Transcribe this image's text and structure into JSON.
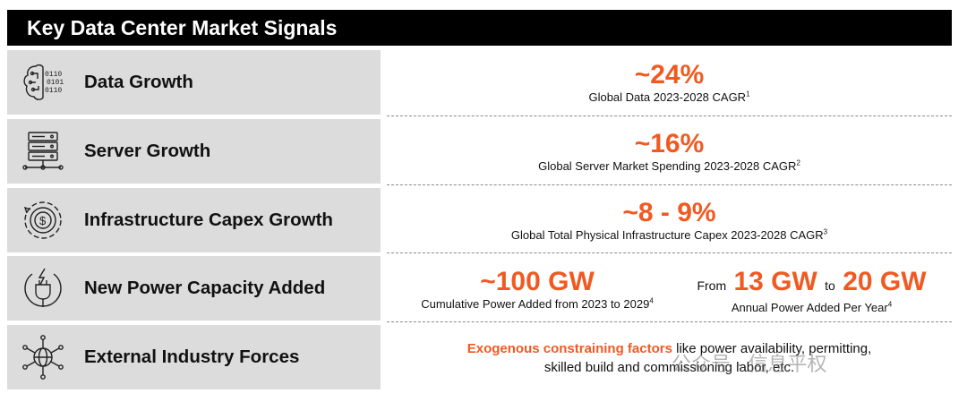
{
  "title": "Key Data Center Market Signals",
  "rows": [
    {
      "label": "Data Growth",
      "icon": "brain-binary-icon"
    },
    {
      "label": "Server Growth",
      "icon": "server-rack-icon"
    },
    {
      "label": "Infrastructure Capex Growth",
      "icon": "dollar-cycle-icon"
    },
    {
      "label": "New Power Capacity Added",
      "icon": "power-plug-icon"
    },
    {
      "label": "External Industry Forces",
      "icon": "globe-network-icon"
    }
  ],
  "metrics": {
    "data_growth": {
      "value": "~24%",
      "desc": "Global Data 2023-2028 CAGR",
      "note": "1"
    },
    "server_growth": {
      "value": "~16%",
      "desc": "Global Server Market Spending 2023-2028 CAGR",
      "note": "2"
    },
    "capex_growth": {
      "value": "~8 - 9%",
      "desc": "Global Total Physical Infrastructure Capex 2023-2028 CAGR",
      "note": "3"
    },
    "power_cumulative": {
      "value": "~100 GW",
      "desc": "Cumulative Power Added from 2023 to 2029",
      "note": "4"
    },
    "power_annual": {
      "from_word": "From",
      "from_value": "13 GW",
      "to_word": "to",
      "to_value": "20 GW",
      "desc": "Annual Power Added Per Year",
      "note": "4"
    },
    "external": {
      "highlight": "Exogenous constraining factors",
      "rest_line1": " like power availability, permitting,",
      "line2": "skilled build and commissioning labor, etc."
    }
  },
  "watermark": "公众号 · 信息平权",
  "colors": {
    "accent": "#f05a22",
    "title_bg": "#000000",
    "label_bg": "#dcdcdc"
  }
}
